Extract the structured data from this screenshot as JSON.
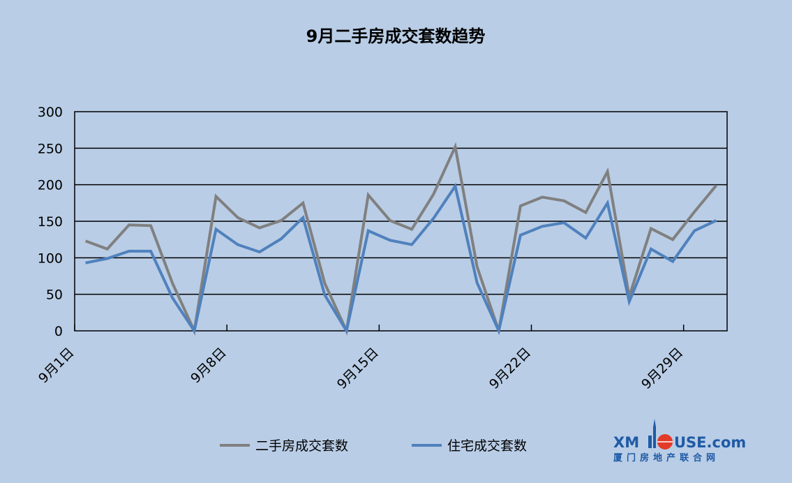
{
  "chart_data": {
    "type": "line",
    "title": "9月二手房成交套数趋势",
    "ylim": [
      0,
      300
    ],
    "yticks": [
      0,
      50,
      100,
      150,
      200,
      250,
      300
    ],
    "x": [
      1,
      2,
      3,
      4,
      5,
      6,
      7,
      8,
      9,
      10,
      11,
      12,
      13,
      14,
      15,
      16,
      17,
      18,
      19,
      20,
      21,
      22,
      23,
      24,
      25,
      26,
      27,
      28,
      29,
      30
    ],
    "xtick_days": [
      1,
      8,
      15,
      22,
      29
    ],
    "xtick_labels": [
      "9月1日",
      "9月8日",
      "9月15日",
      "9月22日",
      "9月29日"
    ],
    "grid": true,
    "legend_position": "bottom",
    "series": [
      {
        "name": "二手房成交套数",
        "color": "#808080",
        "values": [
          123,
          112,
          145,
          144,
          65,
          0,
          184,
          155,
          141,
          151,
          175,
          65,
          0,
          186,
          151,
          139,
          187,
          252,
          88,
          0,
          171,
          183,
          178,
          162,
          218,
          47,
          140,
          125,
          163,
          199
        ]
      },
      {
        "name": "住宅成交套数",
        "color": "#4f81bd",
        "values": [
          93,
          99,
          109,
          109,
          45,
          0,
          139,
          118,
          108,
          126,
          155,
          49,
          0,
          137,
          124,
          118,
          154,
          198,
          66,
          0,
          131,
          143,
          148,
          127,
          175,
          40,
          112,
          95,
          137,
          151
        ]
      }
    ]
  },
  "watermark": {
    "main_left": "XM",
    "main_right": "USE.com",
    "sub": "厦门房地产联合网"
  }
}
